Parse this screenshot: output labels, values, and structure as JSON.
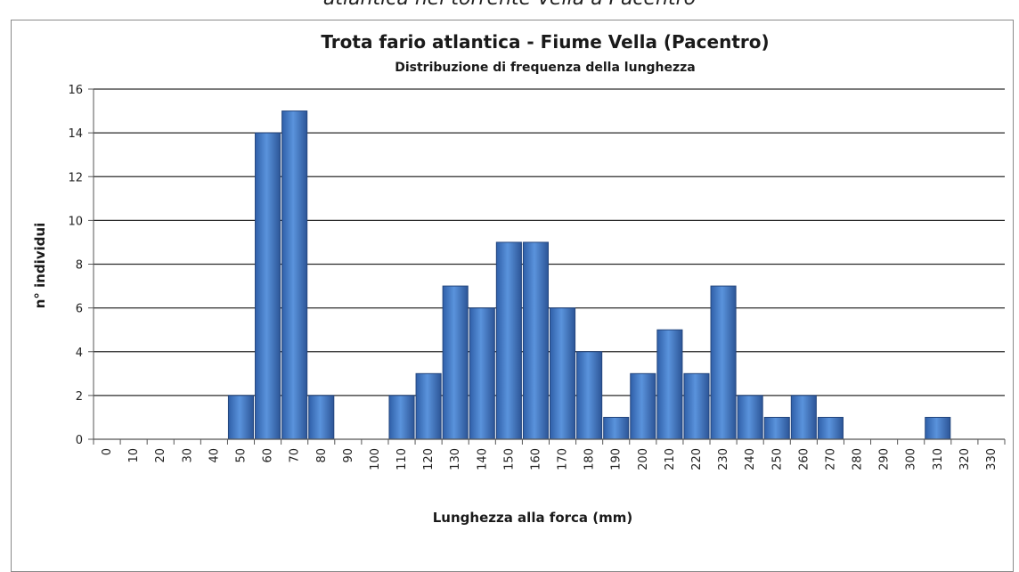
{
  "caption": "atlantica nel torrente Vella a Pacentro",
  "chart_data": {
    "type": "bar",
    "title": "Trota fario atlantica - Fiume Vella (Pacentro)",
    "subtitle": "Distribuzione di frequenza della lunghezza",
    "xlabel": "Lunghezza alla forca (mm)",
    "ylabel": "n° individui",
    "ylim": [
      0,
      16
    ],
    "yticks": [
      0,
      2,
      4,
      6,
      8,
      10,
      12,
      14,
      16
    ],
    "grid": true,
    "legend": "none",
    "bar_color": "#3f74c4",
    "categories": [
      "0",
      "10",
      "20",
      "30",
      "40",
      "50",
      "60",
      "70",
      "80",
      "90",
      "100",
      "110",
      "120",
      "130",
      "140",
      "150",
      "160",
      "170",
      "180",
      "190",
      "200",
      "210",
      "220",
      "230",
      "240",
      "250",
      "260",
      "270",
      "280",
      "290",
      "300",
      "310",
      "320",
      "330"
    ],
    "values": [
      0,
      0,
      0,
      0,
      0,
      2,
      14,
      15,
      2,
      0,
      0,
      2,
      3,
      7,
      6,
      9,
      9,
      6,
      4,
      1,
      3,
      5,
      3,
      7,
      2,
      1,
      2,
      1,
      0,
      0,
      0,
      1,
      0,
      0
    ]
  }
}
